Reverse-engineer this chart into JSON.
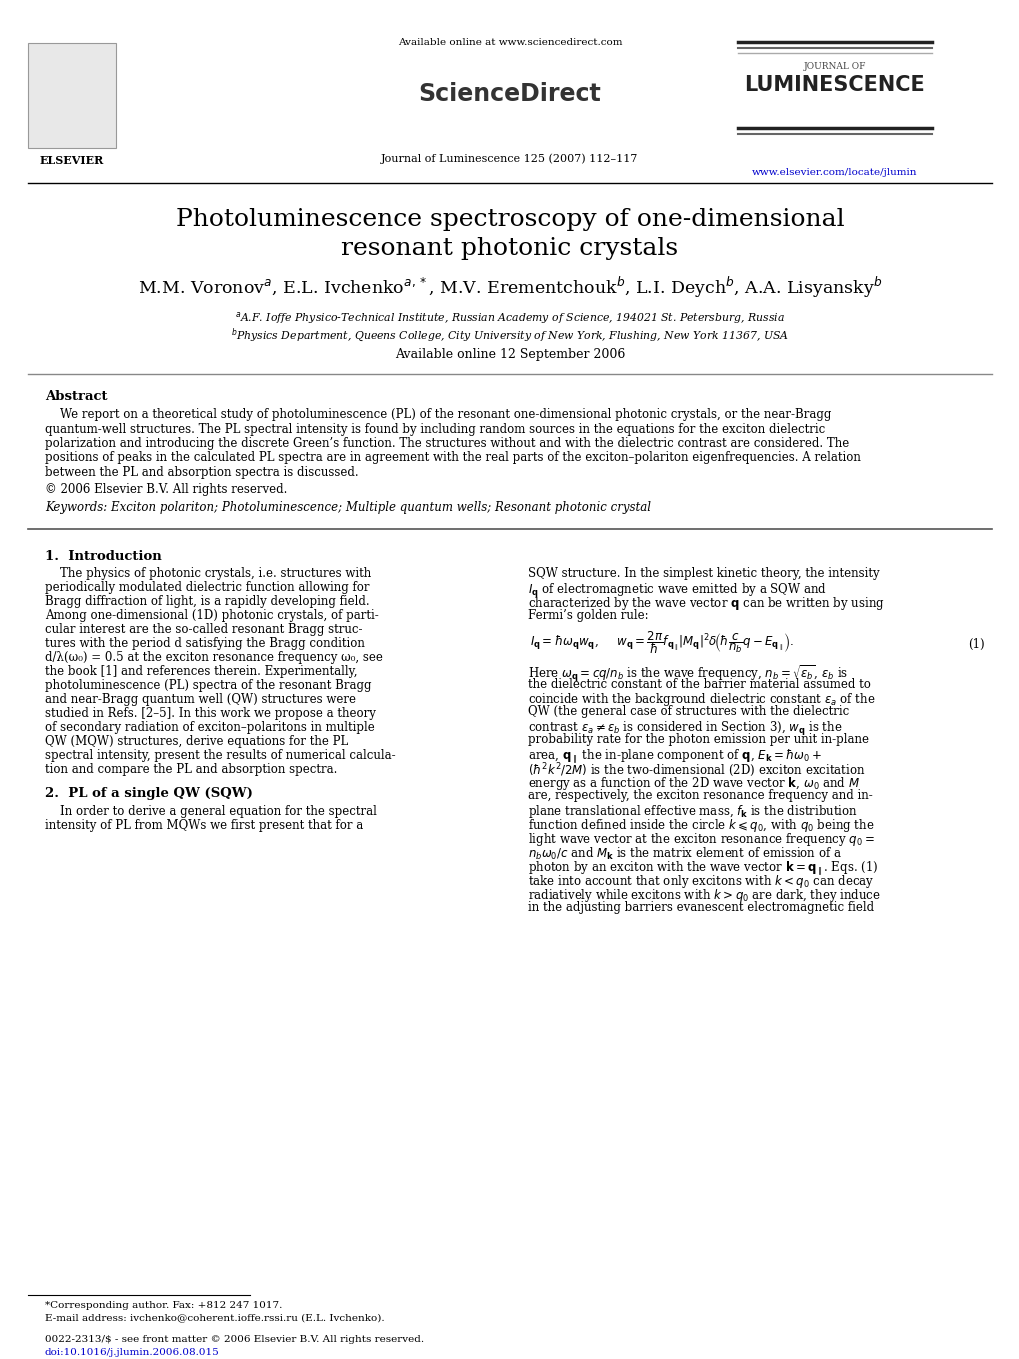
{
  "title_line1": "Photoluminescence spectroscopy of one-dimensional",
  "title_line2": "resonant photonic crystals",
  "authors_line": "M.M. Voronov$^a$, E.L. Ivchenko$^{a,*}$, M.V. Erementchouk$^b$, L.I. Deych$^b$, A.A. Lisyansky$^b$",
  "affil_a": "$^a$A.F. Ioffe Physico-Technical Institute, Russian Academy of Science, 194021 St. Petersburg, Russia",
  "affil_b": "$^b$Physics Department, Queens College, City University of New York, Flushing, New York 11367, USA",
  "available_online": "Available online 12 September 2006",
  "journal_ref": "Journal of Luminescence 125 (2007) 112–117",
  "sciencedirect_url": "Available online at www.sciencedirect.com",
  "elsevier_url": "www.elsevier.com/locate/jlumin",
  "copyright": "© 2006 Elsevier B.V. All rights reserved.",
  "keywords_label": "Keywords:",
  "keywords": "Exciton polariton; Photoluminescence; Multiple quantum wells; Resonant photonic crystal",
  "abstract_title": "Abstract",
  "abstract_lines": [
    "    We report on a theoretical study of photoluminescence (PL) of the resonant one-dimensional photonic crystals, or the near-Bragg",
    "quantum-well structures. The PL spectral intensity is found by including random sources in the equations for the exciton dielectric",
    "polarization and introducing the discrete Green’s function. The structures without and with the dielectric contrast are considered. The",
    "positions of peaks in the calculated PL spectra are in agreement with the real parts of the exciton–polariton eigenfrequencies. A relation",
    "between the PL and absorption spectra is discussed."
  ],
  "section1_title": "1.  Introduction",
  "section1_left_lines": [
    "    The physics of photonic crystals, i.e. structures with",
    "periodically modulated dielectric function allowing for",
    "Bragg diffraction of light, is a rapidly developing field.",
    "Among one-dimensional (1D) photonic crystals, of parti-",
    "cular interest are the so-called resonant Bragg struc-",
    "tures with the period d satisfying the Bragg condition",
    "d/λ(ω₀) = 0.5 at the exciton resonance frequency ω₀, see",
    "the book [1] and references therein. Experimentally,",
    "photoluminescence (PL) spectra of the resonant Bragg",
    "and near-Bragg quantum well (QW) structures were",
    "studied in Refs. [2–5]. In this work we propose a theory",
    "of secondary radiation of exciton–polaritons in multiple",
    "QW (MQW) structures, derive equations for the PL",
    "spectral intensity, present the results of numerical calcula-",
    "tion and compare the PL and absorption spectra."
  ],
  "section2_title": "2.  PL of a single QW (SQW)",
  "section2_left_lines": [
    "    In order to derive a general equation for the spectral",
    "intensity of PL from MQWs we first present that for a"
  ],
  "section1_right_lines": [
    "SQW structure. In the simplest kinetic theory, the intensity",
    "$I_\\mathbf{q}$ of electromagnetic wave emitted by a SQW and",
    "characterized by the wave vector $\\mathbf{q}$ can be written by using",
    "Fermi’s golden rule:"
  ],
  "section2_right_lines": [
    "Here $\\omega_\\mathbf{q} = cq/n_b$ is the wave frequency, $n_b = \\sqrt{\\varepsilon_b}$, $\\varepsilon_b$ is",
    "the dielectric constant of the barrier material assumed to",
    "coincide with the background dielectric constant $\\varepsilon_a$ of the",
    "QW (the general case of structures with the dielectric",
    "contrast $\\varepsilon_a\\neq\\varepsilon_b$ is considered in Section 3), $w_\\mathbf{q}$ is the",
    "probability rate for the photon emission per unit in-plane",
    "area, $\\mathbf{q}_\\parallel$ the in-plane component of $\\mathbf{q}$, $E_\\mathbf{k} = \\hbar\\omega_0 +$",
    "$(\\hbar^2k^2/2M)$ is the two-dimensional (2D) exciton excitation",
    "energy as a function of the 2D wave vector $\\mathbf{k}$, $\\omega_0$ and $M$",
    "are, respectively, the exciton resonance frequency and in-",
    "plane translational effective mass, $f_\\mathbf{k}$ is the distribution",
    "function defined inside the circle $k\\leqslant q_0$, with $q_0$ being the",
    "light wave vector at the exciton resonance frequency $q_0 =$",
    "$n_b\\omega_0/c$ and $M_\\mathbf{k}$ is the matrix element of emission of a",
    "photon by an exciton with the wave vector $\\mathbf{k} = \\mathbf{q}_\\parallel$. Eqs. (1)",
    "take into account that only excitons with $k < q_0$ can decay",
    "radiatively while excitons with $k > q_0$ are dark, they induce",
    "in the adjusting barriers evanescent electromagnetic field"
  ],
  "footnote_corresponding": "*Corresponding author. Fax: +812 247 1017.",
  "footnote_email": "E-mail address: ivchenko@coherent.ioffe.rssi.ru (E.L. Ivchenko).",
  "footnote_issn": "0022-2313/$ - see front matter © 2006 Elsevier B.V. All rights reserved.",
  "footnote_doi": "doi:10.1016/j.jlumin.2006.08.015",
  "bg_color": "#ffffff",
  "text_color": "#000000",
  "link_color": "#0000cc"
}
